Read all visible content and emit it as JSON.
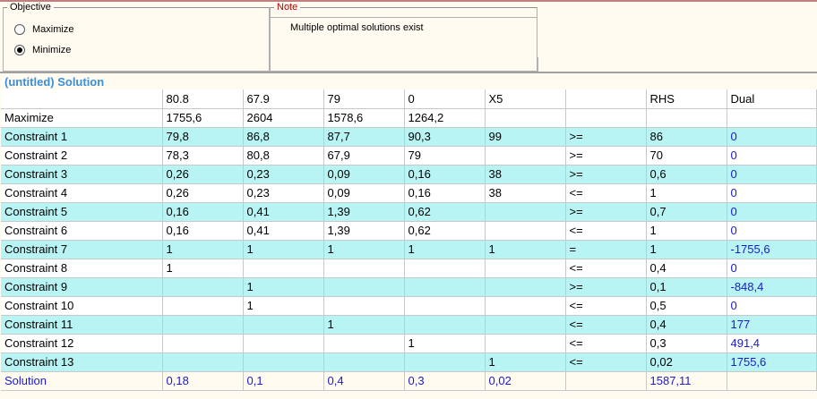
{
  "objective": {
    "legend": "Objective",
    "options": [
      {
        "label": "Maximize",
        "checked": false
      },
      {
        "label": "Minimize",
        "checked": true
      }
    ]
  },
  "note": {
    "legend": "Note",
    "text": "Multiple optimal solutions exist"
  },
  "solution": {
    "title": "(untitled) Solution",
    "header": [
      "",
      "80.8",
      "67.9",
      "79",
      "0",
      "X5",
      "",
      "RHS",
      "Dual"
    ],
    "rows": [
      [
        "Maximize",
        "1755,6",
        "2604",
        "1578,6",
        "1264,2",
        "",
        "",
        "",
        ""
      ],
      [
        "Constraint 1",
        "79,8",
        "86,8",
        "87,7",
        "90,3",
        "99",
        ">=",
        "86",
        "0"
      ],
      [
        "Constraint 2",
        "78,3",
        "80,8",
        "67,9",
        "79",
        "",
        ">=",
        "70",
        "0"
      ],
      [
        "Constraint 3",
        "0,26",
        "0,23",
        "0,09",
        "0,16",
        "38",
        ">=",
        "0,6",
        "0"
      ],
      [
        "Constraint 4",
        "0,26",
        "0,23",
        "0,09",
        "0,16",
        "38",
        "<=",
        "1",
        "0"
      ],
      [
        "Constraint 5",
        "0,16",
        "0,41",
        "1,39",
        "0,62",
        "",
        ">=",
        "0,7",
        "0"
      ],
      [
        "Constraint 6",
        "0,16",
        "0,41",
        "1,39",
        "0,62",
        "",
        "<=",
        "1",
        "0"
      ],
      [
        "Constraint 7",
        "1",
        "1",
        "1",
        "1",
        "1",
        "=",
        "1",
        "-1755,6"
      ],
      [
        "Constraint 8",
        "1",
        "",
        "",
        "",
        "",
        "<=",
        "0,4",
        "0"
      ],
      [
        "Constraint 9",
        "",
        "1",
        "",
        "",
        "",
        ">=",
        "0,1",
        "-848,4"
      ],
      [
        "Constraint 10",
        "",
        "1",
        "",
        "",
        "",
        "<=",
        "0,5",
        "0"
      ],
      [
        "Constraint 11",
        "",
        "",
        "1",
        "",
        "",
        "<=",
        "0,4",
        "177"
      ],
      [
        "Constraint 12",
        "",
        "",
        "",
        "1",
        "",
        "<=",
        "0,3",
        "491,4"
      ],
      [
        "Constraint 13",
        "",
        "",
        "",
        "",
        "1",
        "<=",
        "0,02",
        "1755,6"
      ]
    ],
    "solution_row": [
      "Solution",
      "0,18",
      "0,1",
      "0,4",
      "0,3",
      "0,02",
      "",
      "1587,11",
      ""
    ]
  }
}
